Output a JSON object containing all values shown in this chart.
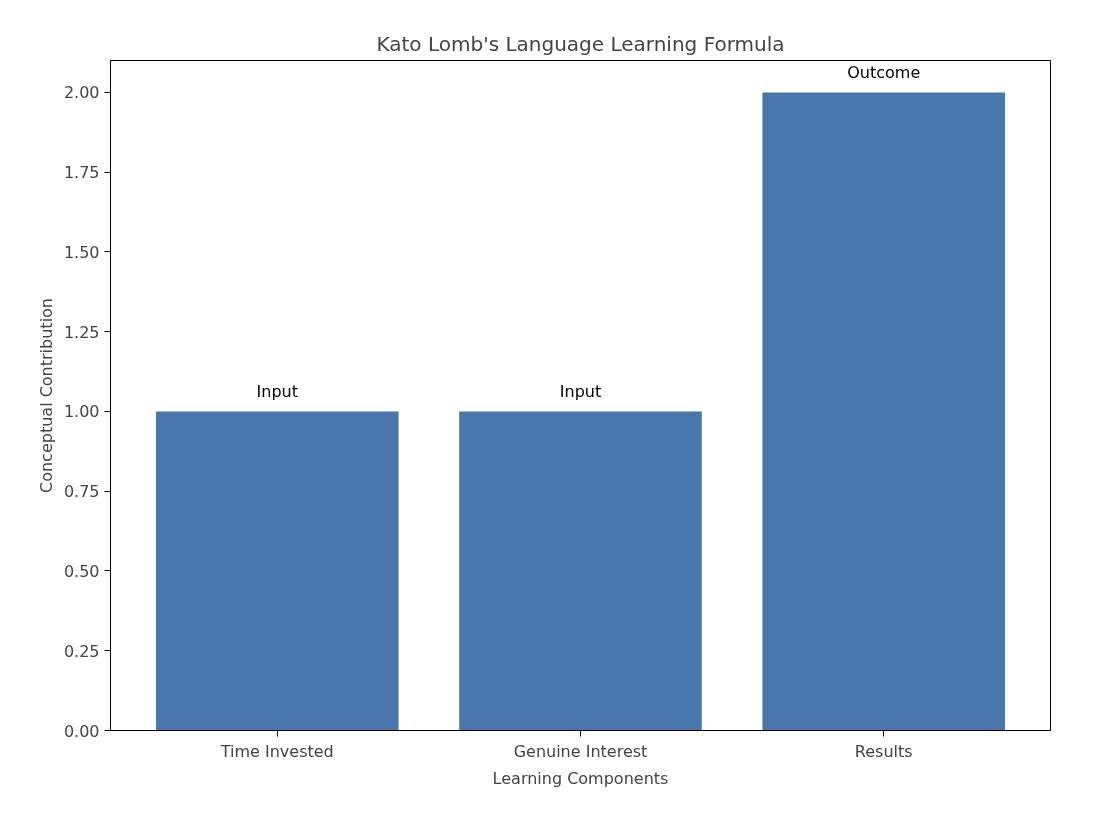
{
  "chart_data": {
    "type": "bar",
    "title": "Kato Lomb's Language Learning Formula",
    "xlabel": "Learning Components",
    "ylabel": "Conceptual Contribution",
    "categories": [
      "Time Invested",
      "Genuine Interest",
      "Results"
    ],
    "values": [
      1,
      1,
      2
    ],
    "color": "#4a76ae",
    "value_labels": [
      "Input",
      "Input",
      "Outcome"
    ],
    "ylim": [
      0,
      2.1
    ],
    "yticks": [
      {
        "value": 0,
        "label": "0.00"
      },
      {
        "value": 0.25,
        "label": "0.25"
      },
      {
        "value": 0.5,
        "label": "0.50"
      },
      {
        "value": 0.75,
        "label": "0.75"
      },
      {
        "value": 1,
        "label": "1.00"
      },
      {
        "value": 1.25,
        "label": "1.25"
      },
      {
        "value": 1.5,
        "label": "1.50"
      },
      {
        "value": 1.75,
        "label": "1.75"
      },
      {
        "value": 2,
        "label": "2.00"
      }
    ],
    "grid": false
  }
}
